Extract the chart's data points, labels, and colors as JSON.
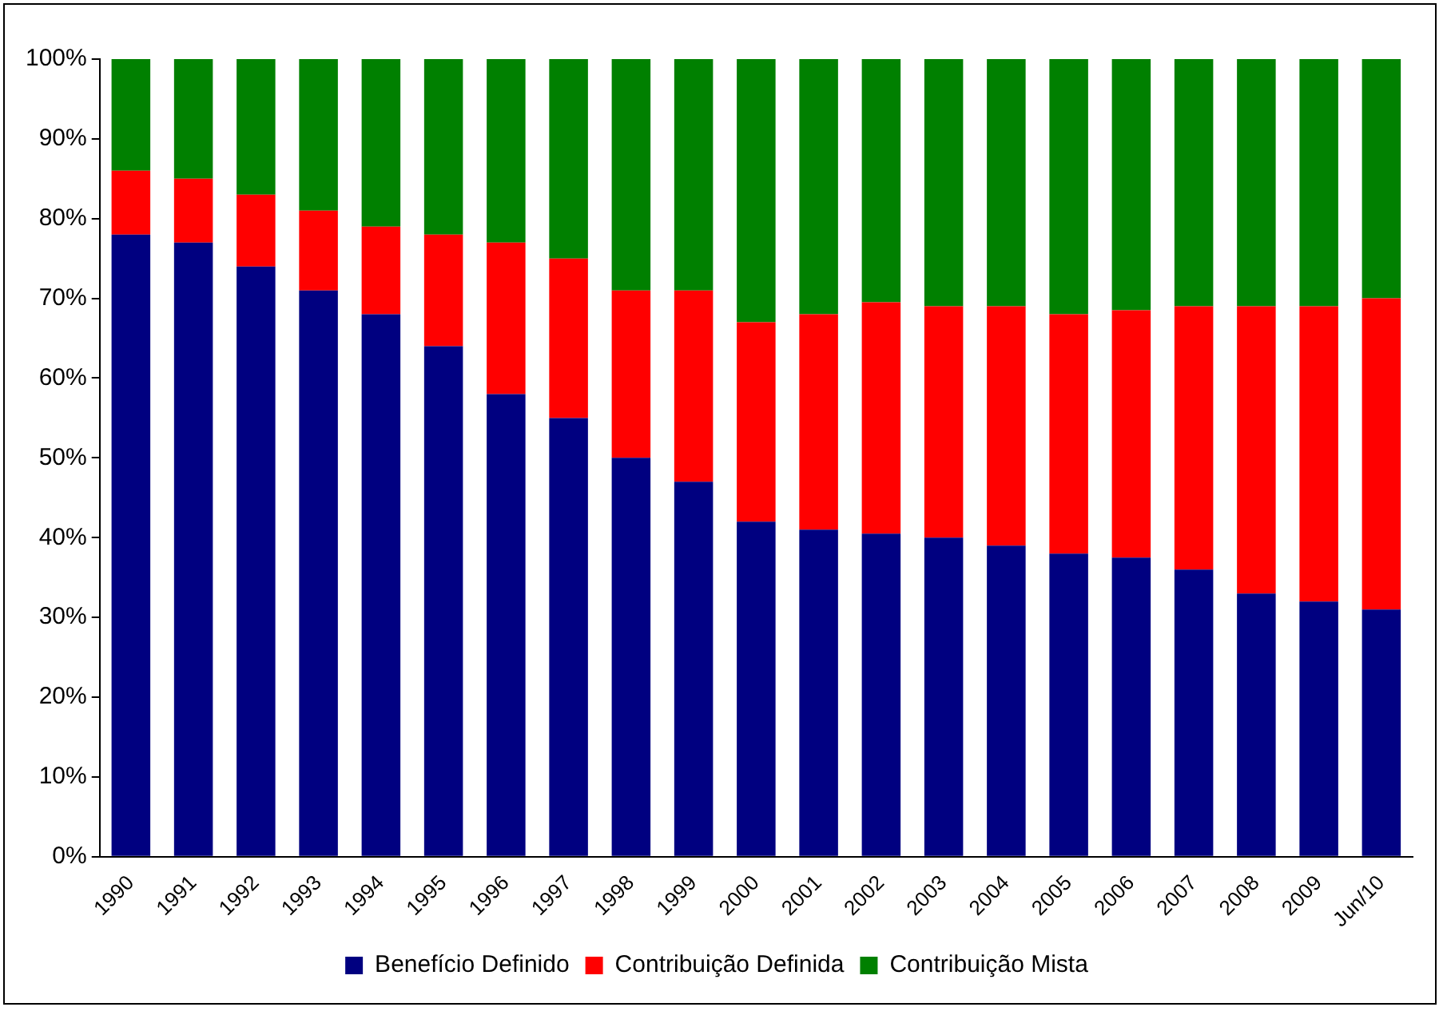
{
  "chart_data": {
    "type": "bar",
    "stacked": true,
    "categories": [
      "1990",
      "1991",
      "1992",
      "1993",
      "1994",
      "1995",
      "1996",
      "1997",
      "1998",
      "1999",
      "2000",
      "2001",
      "2002",
      "2003",
      "2004",
      "2005",
      "2006",
      "2007",
      "2008",
      "2009",
      "Jun/10"
    ],
    "series": [
      {
        "name": "Benefício Definido",
        "color": "#000080",
        "values": [
          78,
          77,
          74,
          71,
          68,
          64,
          58,
          55,
          50,
          47,
          42,
          41,
          40.5,
          40,
          39,
          38,
          37.5,
          36,
          33,
          32,
          31
        ]
      },
      {
        "name": "Contribuição Definida",
        "color": "#ff0000",
        "values": [
          8,
          8,
          9,
          10,
          11,
          14,
          19,
          20,
          21,
          24,
          25,
          27,
          29,
          29,
          30,
          30,
          31,
          33,
          36,
          37,
          39
        ]
      },
      {
        "name": "Contribuição Mista",
        "color": "#008000",
        "values": [
          14,
          15,
          17,
          19,
          21,
          22,
          23,
          25,
          29,
          29,
          33,
          32,
          30.5,
          31,
          31,
          32,
          31.5,
          31,
          31,
          31,
          30
        ]
      }
    ],
    "ylim": [
      0,
      100
    ],
    "yticks": [
      {
        "value": 0,
        "label": "0%"
      },
      {
        "value": 10,
        "label": "10%"
      },
      {
        "value": 20,
        "label": "20%"
      },
      {
        "value": 30,
        "label": "30%"
      },
      {
        "value": 40,
        "label": "40%"
      },
      {
        "value": 50,
        "label": "50%"
      },
      {
        "value": 60,
        "label": "60%"
      },
      {
        "value": 70,
        "label": "70%"
      },
      {
        "value": 80,
        "label": "80%"
      },
      {
        "value": 90,
        "label": "90%"
      },
      {
        "value": 100,
        "label": "100%"
      }
    ],
    "grid": false,
    "legend": "bottom"
  }
}
